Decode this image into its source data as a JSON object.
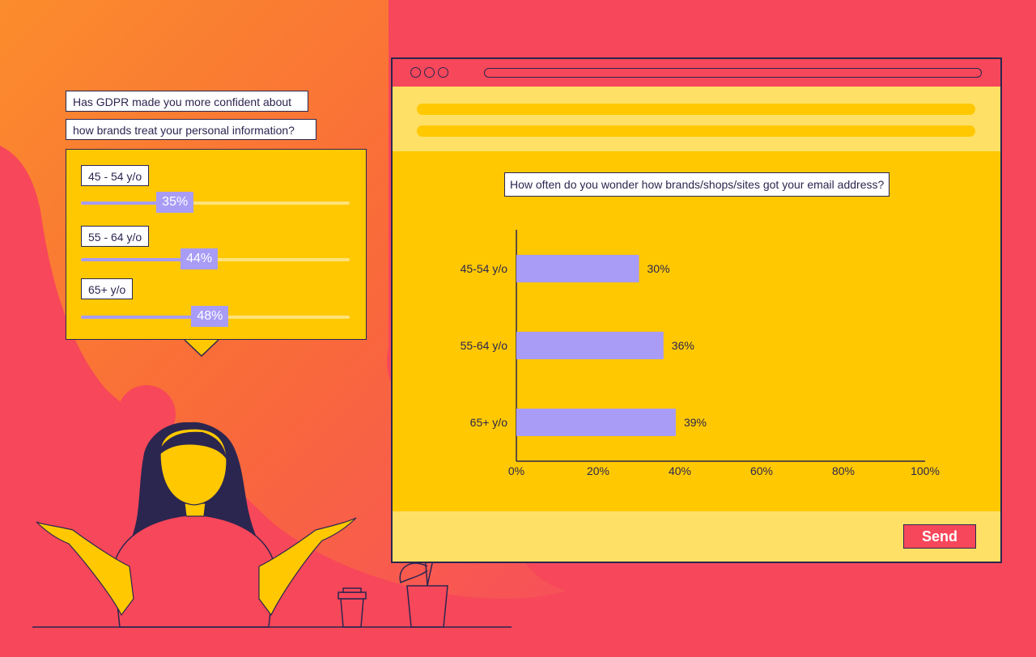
{
  "survey": {
    "question_lines": [
      "Has GDPR made you more confident about",
      "how brands treat your personal information?"
    ],
    "groups": [
      {
        "label": "45 - 54 y/o",
        "percent_text": "35%",
        "value": 35
      },
      {
        "label": "55 - 64 y/o",
        "percent_text": "44%",
        "value": 44
      },
      {
        "label": "65+ y/o",
        "percent_text": "48%",
        "value": 48
      }
    ]
  },
  "browser": {
    "send_label": "Send"
  },
  "colors": {
    "background": "#f7475a",
    "accent_yellow": "#ffc800",
    "light_yellow": "#ffe066",
    "bar_purple": "#a89cf6",
    "outline_navy": "#2b2650"
  },
  "chart_data": {
    "type": "bar",
    "orientation": "horizontal",
    "title": "How often do you wonder how brands/shops/sites got your email address?",
    "categories": [
      "45-54 y/o",
      "55-64 y/o",
      "65+ y/o"
    ],
    "values": [
      30,
      36,
      39
    ],
    "value_labels": [
      "30%",
      "36%",
      "39%"
    ],
    "xlim": [
      0,
      100
    ],
    "x_ticks": [
      0,
      20,
      40,
      60,
      80,
      100
    ],
    "x_tick_labels": [
      "0%",
      "20%",
      "40%",
      "60%",
      "80%",
      "100%"
    ],
    "xlabel": "",
    "ylabel": "",
    "grid": false,
    "legend": "none"
  }
}
